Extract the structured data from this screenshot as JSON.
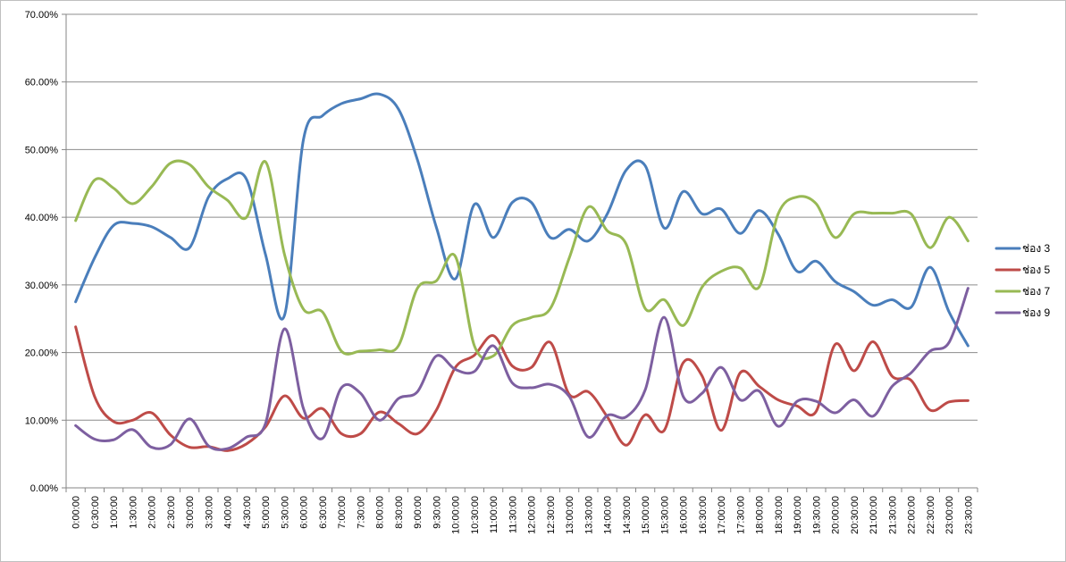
{
  "chart_data": {
    "type": "line",
    "title": "",
    "xlabel": "",
    "ylabel": "",
    "ylim": [
      0,
      70
    ],
    "y_ticks": [
      "0.00%",
      "10.00%",
      "20.00%",
      "30.00%",
      "40.00%",
      "50.00%",
      "60.00%",
      "70.00%"
    ],
    "grid": "horizontal",
    "legend_position": "right",
    "smooth": true,
    "x": [
      "0:00:00",
      "0:30:00",
      "1:00:00",
      "1:30:00",
      "2:00:00",
      "2:30:00",
      "3:00:00",
      "3:30:00",
      "4:00:00",
      "4:30:00",
      "5:00:00",
      "5:30:00",
      "6:00:00",
      "6:30:00",
      "7:00:00",
      "7:30:00",
      "8:00:00",
      "8:30:00",
      "9:00:00",
      "9:30:00",
      "10:00:00",
      "10:30:00",
      "11:00:00",
      "11:30:00",
      "12:00:00",
      "12:30:00",
      "13:00:00",
      "13:30:00",
      "14:00:00",
      "14:30:00",
      "15:00:00",
      "15:30:00",
      "16:00:00",
      "16:30:00",
      "17:00:00",
      "17:30:00",
      "18:00:00",
      "18:30:00",
      "19:00:00",
      "19:30:00",
      "20:00:00",
      "20:30:00",
      "21:00:00",
      "21:30:00",
      "22:00:00",
      "22:30:00",
      "23:00:00",
      "23:30:00"
    ],
    "series": [
      {
        "name": "ช่อง 3",
        "color": "#4a7ebb",
        "values": [
          27.5,
          34.0,
          38.8,
          39.1,
          38.6,
          37.0,
          35.5,
          43.0,
          45.7,
          45.6,
          34.5,
          25.5,
          51.5,
          55.0,
          56.8,
          57.5,
          58.2,
          56.0,
          48.5,
          38.5,
          30.9,
          41.9,
          37.0,
          42.2,
          42.2,
          37.0,
          38.2,
          36.5,
          40.5,
          47.0,
          47.6,
          38.4,
          43.8,
          40.5,
          41.2,
          37.6,
          41.0,
          37.5,
          32.0,
          33.5,
          30.5,
          29.0,
          27.0,
          27.8,
          26.7,
          32.6,
          26.0,
          21.0
        ]
      },
      {
        "name": "ช่อง 5",
        "color": "#be4b48",
        "values": [
          23.8,
          13.5,
          9.8,
          10.0,
          11.1,
          7.8,
          6.0,
          6.1,
          5.5,
          6.5,
          9.0,
          13.6,
          10.3,
          11.7,
          8.0,
          8.0,
          11.2,
          9.5,
          8.0,
          11.5,
          17.8,
          19.6,
          22.5,
          18.0,
          17.8,
          21.5,
          13.8,
          14.2,
          10.5,
          6.3,
          10.8,
          8.5,
          18.5,
          16.5,
          8.5,
          17.0,
          15.0,
          13.0,
          12.1,
          11.3,
          21.2,
          17.3,
          21.6,
          16.5,
          15.9,
          11.5,
          12.7,
          12.9
        ]
      },
      {
        "name": "ช่อง 7",
        "color": "#98b954",
        "values": [
          39.5,
          45.5,
          44.3,
          42.0,
          44.5,
          48.0,
          47.8,
          44.5,
          42.5,
          40.0,
          48.2,
          34.5,
          26.4,
          26.0,
          20.2,
          20.2,
          20.4,
          21.0,
          29.5,
          30.6,
          34.2,
          21.0,
          19.5,
          24.0,
          25.2,
          26.5,
          34.0,
          41.5,
          38.0,
          36.0,
          26.5,
          27.8,
          24.0,
          29.7,
          32.0,
          32.5,
          29.7,
          40.5,
          43.0,
          42.0,
          37.0,
          40.5,
          40.6,
          40.6,
          40.5,
          35.5,
          40.0,
          36.5
        ]
      },
      {
        "name": "ช่อง 9",
        "color": "#7d5fa0",
        "values": [
          9.2,
          7.2,
          7.1,
          8.6,
          6.0,
          6.4,
          10.2,
          6.2,
          5.8,
          7.5,
          9.5,
          23.5,
          11.7,
          7.3,
          14.8,
          14.0,
          10.0,
          13.2,
          14.2,
          19.5,
          17.5,
          17.2,
          21.0,
          15.5,
          14.8,
          15.3,
          13.5,
          7.5,
          10.7,
          10.5,
          14.5,
          25.2,
          13.5,
          14.0,
          17.8,
          13.0,
          14.3,
          9.1,
          12.8,
          12.8,
          11.1,
          13.0,
          10.6,
          15.0,
          17.0,
          20.2,
          21.5,
          29.5
        ]
      }
    ]
  }
}
